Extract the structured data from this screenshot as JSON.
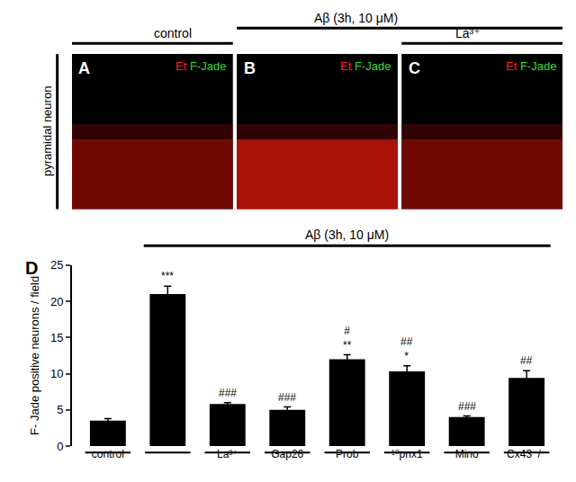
{
  "chart_data": {
    "type": "bar",
    "panel_label": "D",
    "categories": [
      "control",
      null,
      "La³⁺",
      "Gap26",
      "Prob",
      "¹⁰pnx1",
      "Mino",
      "Cx43⁻/⁻"
    ],
    "values": [
      3.5,
      21,
      5.8,
      5,
      12,
      10.3,
      4,
      9.4
    ],
    "errors": [
      0.3,
      1.1,
      0.2,
      0.4,
      0.6,
      0.8,
      0.15,
      1.0
    ],
    "significance": [
      [],
      [
        "***"
      ],
      [
        "###"
      ],
      [
        "###"
      ],
      [
        "#",
        "**"
      ],
      [
        "##",
        "*"
      ],
      [
        "###"
      ],
      [
        "##"
      ]
    ],
    "bracket_label": "Aβ (3h, 10 μM)",
    "ylabel": "F- Jade positive neurons / field",
    "color": "#000000",
    "ylim": [
      0,
      25
    ],
    "yticks": [
      0,
      5,
      10,
      15,
      20,
      25
    ],
    "grid": false
  },
  "panels": {
    "side_label": "pyramidal neuron",
    "headers": [
      "control",
      "Aβ (3h, 10 μM)",
      "La³⁺"
    ],
    "items": [
      {
        "label": "A",
        "stain1": "Et",
        "stain2": "F-Jade"
      },
      {
        "label": "B",
        "stain1": "Et",
        "stain2": "F-Jade"
      },
      {
        "label": "C",
        "stain1": "Et",
        "stain2": "F-Jade"
      }
    ]
  }
}
